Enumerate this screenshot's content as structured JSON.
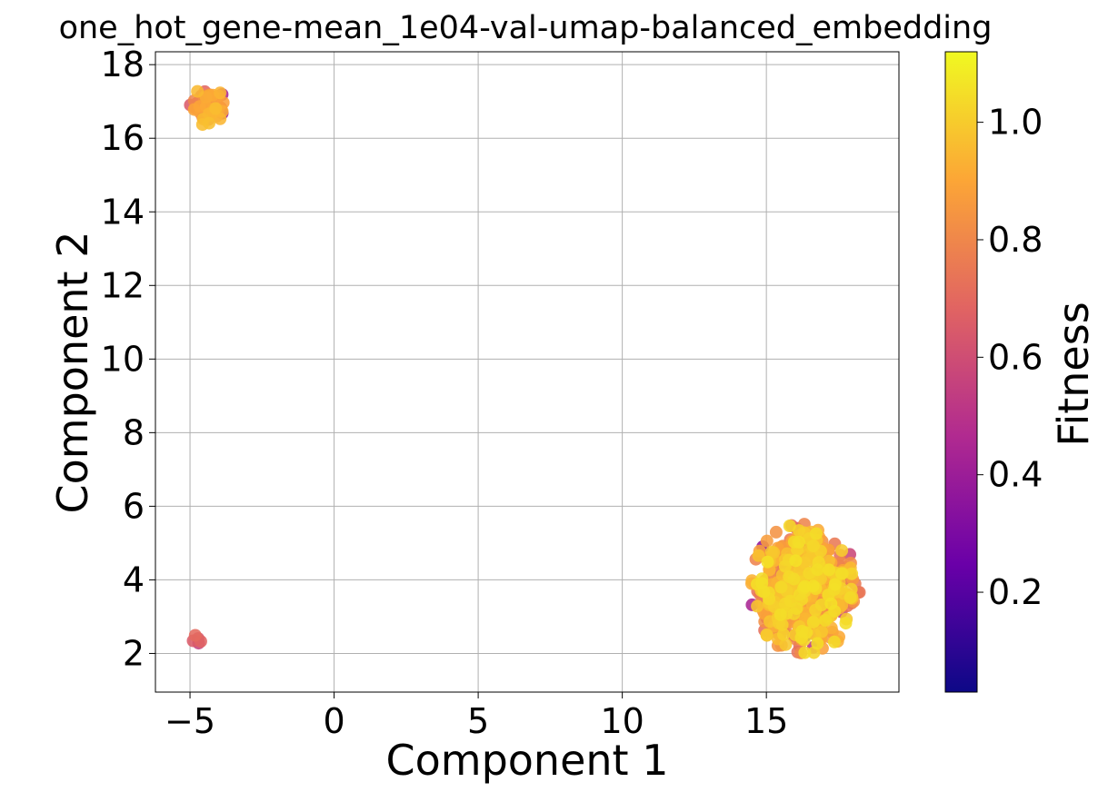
{
  "chart_data": {
    "type": "scatter",
    "title": "one_hot_gene-mean_1e04-val-umap-balanced_embedding",
    "xlabel": "Component 1",
    "ylabel": "Component 2",
    "xlim": [
      -6.2,
      19.6
    ],
    "ylim": [
      0.95,
      18.35
    ],
    "xticks": [
      -5,
      0,
      5,
      10,
      15
    ],
    "xtick_labels": [
      "−5",
      "0",
      "5",
      "10",
      "15"
    ],
    "yticks": [
      2,
      4,
      6,
      8,
      10,
      12,
      14,
      16,
      18
    ],
    "ytick_labels": [
      "2",
      "4",
      "6",
      "8",
      "10",
      "12",
      "14",
      "16",
      "18"
    ],
    "grid": true,
    "colorbar": {
      "label": "Fitness",
      "colormap": "plasma",
      "range": [
        0.03,
        1.12
      ],
      "ticks": [
        0.2,
        0.4,
        0.6,
        0.8,
        1.0
      ],
      "tick_labels": [
        "0.2",
        "0.4",
        "0.6",
        "0.8",
        "1.0"
      ]
    },
    "clusters": [
      {
        "center": [
          -4.35,
          16.85
        ],
        "spread": [
          0.38,
          0.32
        ],
        "count": 60,
        "fitness_mean": 0.82
      },
      {
        "center": [
          -4.75,
          2.4
        ],
        "spread": [
          0.1,
          0.09
        ],
        "count": 5,
        "fitness_mean": 0.7
      },
      {
        "center": [
          16.3,
          3.75
        ],
        "spread": [
          1.15,
          1.05
        ],
        "count": 520,
        "fitness_mean": 0.9
      }
    ]
  },
  "colors": {
    "grid": "#b0b0b0",
    "axes": "#000000",
    "colormap_stops": [
      "#0d0887",
      "#6a00a8",
      "#b12a90",
      "#e16462",
      "#fca636",
      "#f0f921"
    ]
  }
}
